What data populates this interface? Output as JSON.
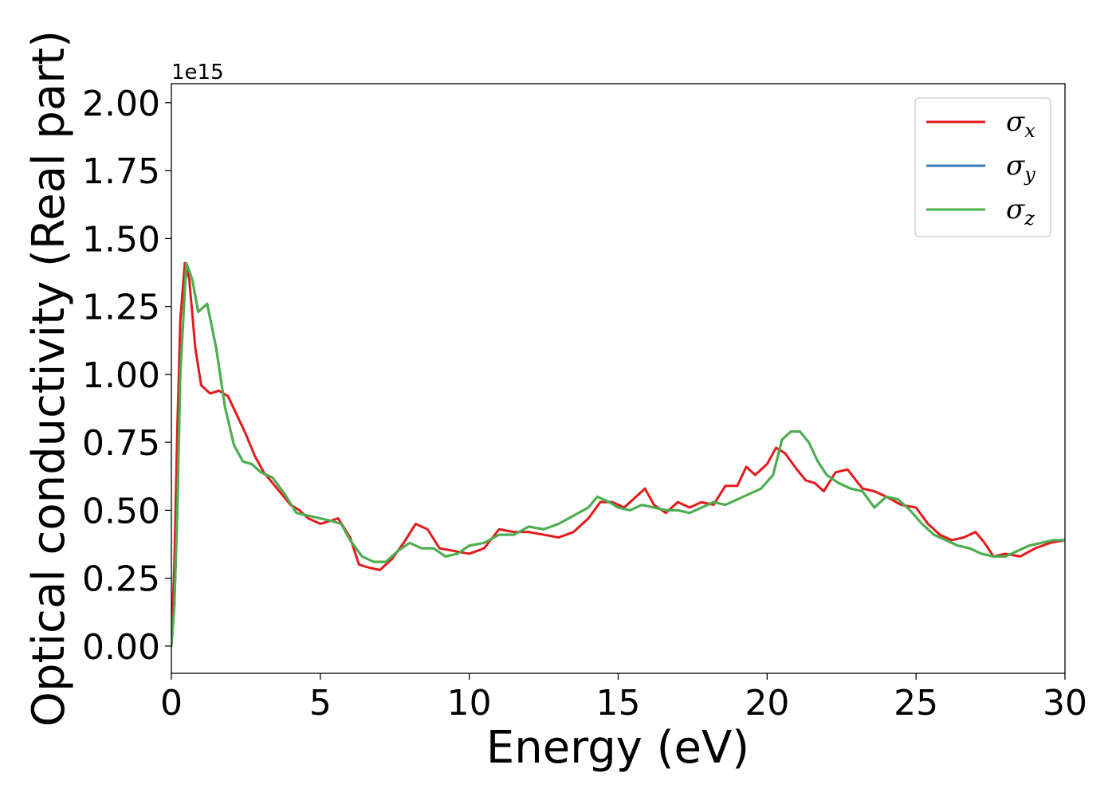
{
  "chart_data": {
    "type": "line",
    "xlabel": "Energy (eV)",
    "ylabel": "Optical conductivity (Real part)",
    "y_offset_label": "1e15",
    "xlim": [
      0,
      30
    ],
    "ylim": [
      -0.1,
      2.07
    ],
    "x_ticks": [
      0,
      5,
      10,
      15,
      20,
      25,
      30
    ],
    "x_tick_labels": [
      "0",
      "5",
      "10",
      "15",
      "20",
      "25",
      "30"
    ],
    "y_ticks": [
      0,
      0.25,
      0.5,
      0.75,
      1.0,
      1.25,
      1.5,
      1.75,
      2.0
    ],
    "y_tick_labels": [
      "0.00",
      "0.25",
      "0.50",
      "0.75",
      "1.00",
      "1.25",
      "1.50",
      "1.75",
      "2.00"
    ],
    "grid": false,
    "legend_position": "top-right",
    "series": [
      {
        "name": "σx",
        "base": "σ",
        "sub": "x",
        "color": "#e41a1c",
        "points": [
          [
            0,
            0
          ],
          [
            0.1,
            0.3
          ],
          [
            0.2,
            0.8
          ],
          [
            0.3,
            1.2
          ],
          [
            0.45,
            1.41
          ],
          [
            0.6,
            1.35
          ],
          [
            0.8,
            1.1
          ],
          [
            1.0,
            0.96
          ],
          [
            1.3,
            0.93
          ],
          [
            1.6,
            0.94
          ],
          [
            1.9,
            0.92
          ],
          [
            2.2,
            0.85
          ],
          [
            2.5,
            0.78
          ],
          [
            2.8,
            0.7
          ],
          [
            3.1,
            0.64
          ],
          [
            3.4,
            0.6
          ],
          [
            3.7,
            0.56
          ],
          [
            4.0,
            0.52
          ],
          [
            4.3,
            0.5
          ],
          [
            4.6,
            0.47
          ],
          [
            5.0,
            0.45
          ],
          [
            5.3,
            0.46
          ],
          [
            5.6,
            0.47
          ],
          [
            6.0,
            0.4
          ],
          [
            6.3,
            0.3
          ],
          [
            6.6,
            0.29
          ],
          [
            7.0,
            0.28
          ],
          [
            7.4,
            0.32
          ],
          [
            7.8,
            0.38
          ],
          [
            8.2,
            0.45
          ],
          [
            8.6,
            0.43
          ],
          [
            9.0,
            0.36
          ],
          [
            9.5,
            0.35
          ],
          [
            10.0,
            0.34
          ],
          [
            10.5,
            0.36
          ],
          [
            11.0,
            0.43
          ],
          [
            11.5,
            0.42
          ],
          [
            12.0,
            0.42
          ],
          [
            12.5,
            0.41
          ],
          [
            13.0,
            0.4
          ],
          [
            13.5,
            0.42
          ],
          [
            14.0,
            0.47
          ],
          [
            14.4,
            0.53
          ],
          [
            14.8,
            0.53
          ],
          [
            15.2,
            0.51
          ],
          [
            15.6,
            0.55
          ],
          [
            15.9,
            0.58
          ],
          [
            16.2,
            0.52
          ],
          [
            16.6,
            0.49
          ],
          [
            17.0,
            0.53
          ],
          [
            17.4,
            0.51
          ],
          [
            17.8,
            0.53
          ],
          [
            18.2,
            0.52
          ],
          [
            18.6,
            0.59
          ],
          [
            19.0,
            0.59
          ],
          [
            19.3,
            0.66
          ],
          [
            19.6,
            0.63
          ],
          [
            20.0,
            0.67
          ],
          [
            20.3,
            0.73
          ],
          [
            20.6,
            0.71
          ],
          [
            21.0,
            0.65
          ],
          [
            21.3,
            0.61
          ],
          [
            21.6,
            0.6
          ],
          [
            21.9,
            0.57
          ],
          [
            22.3,
            0.64
          ],
          [
            22.7,
            0.65
          ],
          [
            23.2,
            0.58
          ],
          [
            23.6,
            0.57
          ],
          [
            24.0,
            0.55
          ],
          [
            24.5,
            0.52
          ],
          [
            25.0,
            0.51
          ],
          [
            25.4,
            0.45
          ],
          [
            25.8,
            0.41
          ],
          [
            26.2,
            0.39
          ],
          [
            26.6,
            0.4
          ],
          [
            27.0,
            0.42
          ],
          [
            27.3,
            0.38
          ],
          [
            27.6,
            0.33
          ],
          [
            28.0,
            0.34
          ],
          [
            28.5,
            0.33
          ],
          [
            29.0,
            0.36
          ],
          [
            29.5,
            0.38
          ],
          [
            30.0,
            0.39
          ]
        ]
      },
      {
        "name": "σy",
        "base": "σ",
        "sub": "y",
        "color": "#377eb8",
        "points": [
          [
            0,
            0
          ],
          [
            0.1,
            0.15
          ],
          [
            0.2,
            0.5
          ],
          [
            0.3,
            1.0
          ],
          [
            0.5,
            1.41
          ],
          [
            0.7,
            1.35
          ],
          [
            0.9,
            1.23
          ],
          [
            1.2,
            1.26
          ],
          [
            1.5,
            1.1
          ],
          [
            1.8,
            0.88
          ],
          [
            2.1,
            0.74
          ],
          [
            2.4,
            0.68
          ],
          [
            2.7,
            0.67
          ],
          [
            3.0,
            0.64
          ],
          [
            3.4,
            0.62
          ],
          [
            3.8,
            0.56
          ],
          [
            4.2,
            0.49
          ],
          [
            4.6,
            0.48
          ],
          [
            5.0,
            0.47
          ],
          [
            5.4,
            0.46
          ],
          [
            5.7,
            0.45
          ],
          [
            6.0,
            0.39
          ],
          [
            6.4,
            0.33
          ],
          [
            6.8,
            0.31
          ],
          [
            7.2,
            0.31
          ],
          [
            7.6,
            0.35
          ],
          [
            8.0,
            0.38
          ],
          [
            8.4,
            0.36
          ],
          [
            8.8,
            0.36
          ],
          [
            9.2,
            0.33
          ],
          [
            9.6,
            0.34
          ],
          [
            10.0,
            0.37
          ],
          [
            10.5,
            0.38
          ],
          [
            11.0,
            0.41
          ],
          [
            11.5,
            0.41
          ],
          [
            12.0,
            0.44
          ],
          [
            12.5,
            0.43
          ],
          [
            13.0,
            0.45
          ],
          [
            13.5,
            0.48
          ],
          [
            14.0,
            0.51
          ],
          [
            14.3,
            0.55
          ],
          [
            14.7,
            0.53
          ],
          [
            15.0,
            0.51
          ],
          [
            15.4,
            0.5
          ],
          [
            15.8,
            0.52
          ],
          [
            16.2,
            0.51
          ],
          [
            16.6,
            0.5
          ],
          [
            17.0,
            0.5
          ],
          [
            17.4,
            0.49
          ],
          [
            17.8,
            0.51
          ],
          [
            18.2,
            0.53
          ],
          [
            18.6,
            0.52
          ],
          [
            19.0,
            0.54
          ],
          [
            19.4,
            0.56
          ],
          [
            19.8,
            0.58
          ],
          [
            20.2,
            0.63
          ],
          [
            20.5,
            0.76
          ],
          [
            20.8,
            0.79
          ],
          [
            21.1,
            0.79
          ],
          [
            21.4,
            0.75
          ],
          [
            21.7,
            0.68
          ],
          [
            22.0,
            0.63
          ],
          [
            22.4,
            0.6
          ],
          [
            22.8,
            0.58
          ],
          [
            23.2,
            0.57
          ],
          [
            23.6,
            0.51
          ],
          [
            24.0,
            0.55
          ],
          [
            24.4,
            0.54
          ],
          [
            24.8,
            0.5
          ],
          [
            25.2,
            0.45
          ],
          [
            25.6,
            0.41
          ],
          [
            26.0,
            0.39
          ],
          [
            26.4,
            0.37
          ],
          [
            26.8,
            0.36
          ],
          [
            27.2,
            0.34
          ],
          [
            27.6,
            0.33
          ],
          [
            28.0,
            0.33
          ],
          [
            28.4,
            0.35
          ],
          [
            28.8,
            0.37
          ],
          [
            29.2,
            0.38
          ],
          [
            29.6,
            0.39
          ],
          [
            30.0,
            0.39
          ]
        ]
      },
      {
        "name": "σz",
        "base": "σ",
        "sub": "z",
        "color": "#4daf4a",
        "points": [
          [
            0,
            0
          ],
          [
            0.1,
            0.15
          ],
          [
            0.2,
            0.5
          ],
          [
            0.3,
            1.0
          ],
          [
            0.5,
            1.41
          ],
          [
            0.7,
            1.35
          ],
          [
            0.9,
            1.23
          ],
          [
            1.2,
            1.26
          ],
          [
            1.5,
            1.1
          ],
          [
            1.8,
            0.88
          ],
          [
            2.1,
            0.74
          ],
          [
            2.4,
            0.68
          ],
          [
            2.7,
            0.67
          ],
          [
            3.0,
            0.64
          ],
          [
            3.4,
            0.62
          ],
          [
            3.8,
            0.56
          ],
          [
            4.2,
            0.49
          ],
          [
            4.6,
            0.48
          ],
          [
            5.0,
            0.47
          ],
          [
            5.4,
            0.46
          ],
          [
            5.7,
            0.45
          ],
          [
            6.0,
            0.39
          ],
          [
            6.4,
            0.33
          ],
          [
            6.8,
            0.31
          ],
          [
            7.2,
            0.31
          ],
          [
            7.6,
            0.35
          ],
          [
            8.0,
            0.38
          ],
          [
            8.4,
            0.36
          ],
          [
            8.8,
            0.36
          ],
          [
            9.2,
            0.33
          ],
          [
            9.6,
            0.34
          ],
          [
            10.0,
            0.37
          ],
          [
            10.5,
            0.38
          ],
          [
            11.0,
            0.41
          ],
          [
            11.5,
            0.41
          ],
          [
            12.0,
            0.44
          ],
          [
            12.5,
            0.43
          ],
          [
            13.0,
            0.45
          ],
          [
            13.5,
            0.48
          ],
          [
            14.0,
            0.51
          ],
          [
            14.3,
            0.55
          ],
          [
            14.7,
            0.53
          ],
          [
            15.0,
            0.51
          ],
          [
            15.4,
            0.5
          ],
          [
            15.8,
            0.52
          ],
          [
            16.2,
            0.51
          ],
          [
            16.6,
            0.5
          ],
          [
            17.0,
            0.5
          ],
          [
            17.4,
            0.49
          ],
          [
            17.8,
            0.51
          ],
          [
            18.2,
            0.53
          ],
          [
            18.6,
            0.52
          ],
          [
            19.0,
            0.54
          ],
          [
            19.4,
            0.56
          ],
          [
            19.8,
            0.58
          ],
          [
            20.2,
            0.63
          ],
          [
            20.5,
            0.76
          ],
          [
            20.8,
            0.79
          ],
          [
            21.1,
            0.79
          ],
          [
            21.4,
            0.75
          ],
          [
            21.7,
            0.68
          ],
          [
            22.0,
            0.63
          ],
          [
            22.4,
            0.6
          ],
          [
            22.8,
            0.58
          ],
          [
            23.2,
            0.57
          ],
          [
            23.6,
            0.51
          ],
          [
            24.0,
            0.55
          ],
          [
            24.4,
            0.54
          ],
          [
            24.8,
            0.5
          ],
          [
            25.2,
            0.45
          ],
          [
            25.6,
            0.41
          ],
          [
            26.0,
            0.39
          ],
          [
            26.4,
            0.37
          ],
          [
            26.8,
            0.36
          ],
          [
            27.2,
            0.34
          ],
          [
            27.6,
            0.33
          ],
          [
            28.0,
            0.33
          ],
          [
            28.4,
            0.35
          ],
          [
            28.8,
            0.37
          ],
          [
            29.2,
            0.38
          ],
          [
            29.6,
            0.39
          ],
          [
            30.0,
            0.39
          ]
        ]
      }
    ]
  }
}
